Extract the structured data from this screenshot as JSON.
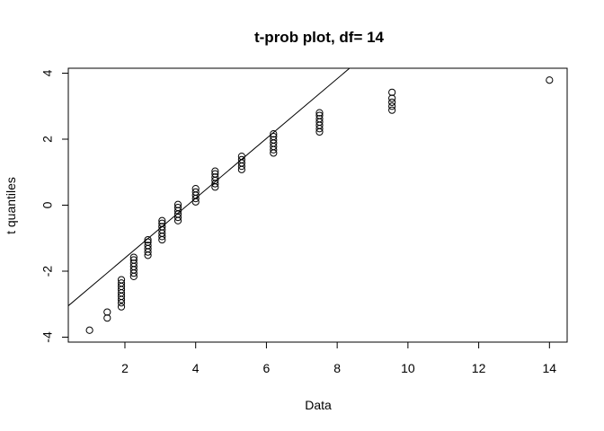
{
  "chart_data": {
    "type": "scatter",
    "title": "t-prob plot, df= 14",
    "xlabel": "Data",
    "ylabel": "t quantiles",
    "xlim": [
      0.4,
      14.5
    ],
    "ylim": [
      -4.15,
      4.15
    ],
    "xticks": [
      2,
      4,
      6,
      8,
      10,
      12,
      14
    ],
    "yticks": [
      -4,
      -2,
      0,
      2,
      4
    ],
    "grid": false,
    "legend": "none",
    "colors": {
      "points": "#000000",
      "line": "#000000",
      "frame": "#000000"
    },
    "series": [
      {
        "type": "scatter",
        "points": [
          {
            "x": 1.0,
            "y": -3.79
          },
          {
            "x": 1.5,
            "y": -3.42
          },
          {
            "x": 1.5,
            "y": -3.24
          },
          {
            "x": 1.9,
            "y": -3.08
          },
          {
            "x": 1.9,
            "y": -2.96
          },
          {
            "x": 1.9,
            "y": -2.86
          },
          {
            "x": 1.9,
            "y": -2.76
          },
          {
            "x": 1.9,
            "y": -2.66
          },
          {
            "x": 1.9,
            "y": -2.56
          },
          {
            "x": 1.9,
            "y": -2.46
          },
          {
            "x": 1.9,
            "y": -2.36
          },
          {
            "x": 1.9,
            "y": -2.26
          },
          {
            "x": 2.25,
            "y": -2.16
          },
          {
            "x": 2.25,
            "y": -2.06
          },
          {
            "x": 2.25,
            "y": -1.96
          },
          {
            "x": 2.25,
            "y": -1.86
          },
          {
            "x": 2.25,
            "y": -1.76
          },
          {
            "x": 2.25,
            "y": -1.66
          },
          {
            "x": 2.25,
            "y": -1.58
          },
          {
            "x": 2.65,
            "y": -1.52
          },
          {
            "x": 2.65,
            "y": -1.42
          },
          {
            "x": 2.65,
            "y": -1.32
          },
          {
            "x": 2.65,
            "y": -1.22
          },
          {
            "x": 2.65,
            "y": -1.12
          },
          {
            "x": 2.65,
            "y": -1.05
          },
          {
            "x": 3.05,
            "y": -1.05
          },
          {
            "x": 3.05,
            "y": -0.95
          },
          {
            "x": 3.05,
            "y": -0.85
          },
          {
            "x": 3.05,
            "y": -0.75
          },
          {
            "x": 3.05,
            "y": -0.65
          },
          {
            "x": 3.05,
            "y": -0.55
          },
          {
            "x": 3.05,
            "y": -0.47
          },
          {
            "x": 3.5,
            "y": -0.47
          },
          {
            "x": 3.5,
            "y": -0.37
          },
          {
            "x": 3.5,
            "y": -0.27
          },
          {
            "x": 3.5,
            "y": -0.17
          },
          {
            "x": 3.5,
            "y": -0.07
          },
          {
            "x": 3.5,
            "y": 0.02
          },
          {
            "x": 4.0,
            "y": 0.1
          },
          {
            "x": 4.0,
            "y": 0.2
          },
          {
            "x": 4.0,
            "y": 0.3
          },
          {
            "x": 4.0,
            "y": 0.4
          },
          {
            "x": 4.0,
            "y": 0.5
          },
          {
            "x": 4.55,
            "y": 0.55
          },
          {
            "x": 4.55,
            "y": 0.65
          },
          {
            "x": 4.55,
            "y": 0.75
          },
          {
            "x": 4.55,
            "y": 0.85
          },
          {
            "x": 4.55,
            "y": 0.95
          },
          {
            "x": 4.55,
            "y": 1.03
          },
          {
            "x": 5.3,
            "y": 1.08
          },
          {
            "x": 5.3,
            "y": 1.18
          },
          {
            "x": 5.3,
            "y": 1.28
          },
          {
            "x": 5.3,
            "y": 1.38
          },
          {
            "x": 5.3,
            "y": 1.48
          },
          {
            "x": 6.2,
            "y": 1.58
          },
          {
            "x": 6.2,
            "y": 1.68
          },
          {
            "x": 6.2,
            "y": 1.78
          },
          {
            "x": 6.2,
            "y": 1.88
          },
          {
            "x": 6.2,
            "y": 1.98
          },
          {
            "x": 6.2,
            "y": 2.08
          },
          {
            "x": 6.2,
            "y": 2.16
          },
          {
            "x": 7.5,
            "y": 2.22
          },
          {
            "x": 7.5,
            "y": 2.32
          },
          {
            "x": 7.5,
            "y": 2.42
          },
          {
            "x": 7.5,
            "y": 2.52
          },
          {
            "x": 7.5,
            "y": 2.62
          },
          {
            "x": 7.5,
            "y": 2.72
          },
          {
            "x": 7.5,
            "y": 2.8
          },
          {
            "x": 9.55,
            "y": 2.88
          },
          {
            "x": 9.55,
            "y": 3.0
          },
          {
            "x": 9.55,
            "y": 3.12
          },
          {
            "x": 9.55,
            "y": 3.24
          },
          {
            "x": 9.55,
            "y": 3.42
          },
          {
            "x": 14.0,
            "y": 3.79
          }
        ]
      },
      {
        "type": "line",
        "x": [
          0.4,
          8.35
        ],
        "y": [
          -3.05,
          4.15
        ]
      }
    ]
  }
}
